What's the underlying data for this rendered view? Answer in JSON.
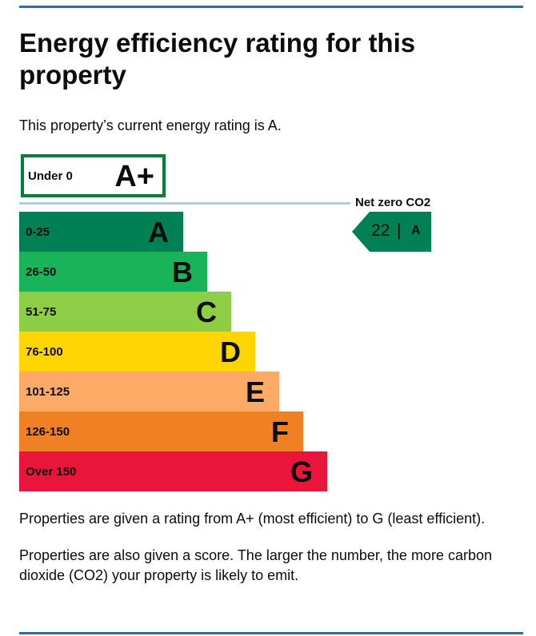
{
  "page": {
    "title": "Energy efficiency rating for this property",
    "intro": "This property’s current energy rating is A.",
    "note1": "Properties are given a rating from A+ (most efficient) to G (least efficient).",
    "note2": "Properties are also given a score. The larger the number, the more carbon dioxide (CO2) your property is likely to emit."
  },
  "top_band": {
    "range": "Under 0",
    "letter": "A+",
    "border_color": "#007f3b"
  },
  "net_zero": {
    "label": "Net zero CO2",
    "line_color": "#a7cfe6"
  },
  "bands": [
    {
      "range": "0-25",
      "letter": "A",
      "color": "#008054"
    },
    {
      "range": "26-50",
      "letter": "B",
      "color": "#19b459"
    },
    {
      "range": "51-75",
      "letter": "C",
      "color": "#8dce46"
    },
    {
      "range": "76-100",
      "letter": "D",
      "color": "#ffd500"
    },
    {
      "range": "101-125",
      "letter": "E",
      "color": "#fcaa65"
    },
    {
      "range": "126-150",
      "letter": "F",
      "color": "#ef8023"
    },
    {
      "range": "Over 150",
      "letter": "G",
      "color": "#e9153b"
    }
  ],
  "current": {
    "score": "22",
    "separator": "|",
    "letter": "A",
    "color": "#008054"
  }
}
